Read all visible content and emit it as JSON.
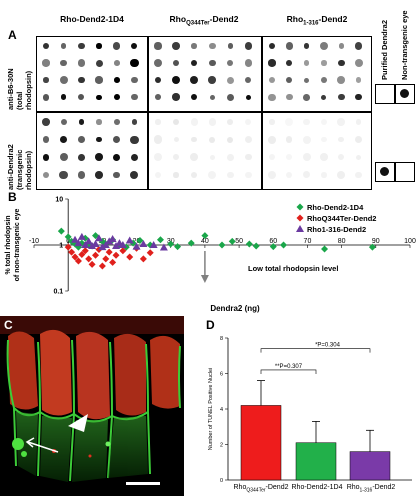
{
  "panel_a": {
    "letter": "A",
    "column_titles": [
      {
        "main": "Rho-Dend2-1D4",
        "sub": "",
        "suffix": ""
      },
      {
        "main": "Rho",
        "sub": "Q344Ter",
        "suffix": "-Dend2"
      },
      {
        "main": "Rho",
        "sub": "1-316",
        "suffix": "-Dend2"
      }
    ],
    "row_labels": [
      {
        "line1": "anti-B6-30N",
        "line2": "(total",
        "line3": "rhodopsin)"
      },
      {
        "line1": "anti-Dendra2",
        "line2": "(transgenic",
        "line3": "rhodopsin)"
      }
    ],
    "side_labels": [
      "Purified Dendra2",
      "Non-transgenic eye"
    ]
  },
  "panel_b": {
    "letter": "B",
    "annotation": "Low total rhodopsin level"
  },
  "panel_c": {
    "letter": "C"
  },
  "panel_d": {
    "letter": "D",
    "sig_labels": [
      "P=0.304",
      "P=0.307"
    ]
  },
  "chart_data": [
    {
      "type": "scatter",
      "xlabel": "Dendra2 (ng)",
      "ylabel": "% total rhodopsin of non-transgenic eye",
      "xlim": [
        -10,
        100
      ],
      "ylim": [
        0.1,
        10
      ],
      "y_scale": "log",
      "x_ticks": [
        "-10",
        "0",
        "10",
        "20",
        "30",
        "40",
        "50",
        "60",
        "70",
        "80",
        "90",
        "100"
      ],
      "y_ticks": [
        "10",
        "1",
        "0.1"
      ],
      "legend_position": "top-right",
      "series": [
        {
          "name": "Rho-Dend2-1D4",
          "color": "#1aa64a",
          "marker": "diamond",
          "points": [
            [
              -2,
              2.0
            ],
            [
              0,
              1.5
            ],
            [
              1,
              1.2
            ],
            [
              2,
              1.05
            ],
            [
              3,
              0.9
            ],
            [
              4,
              1.1
            ],
            [
              5,
              1.4
            ],
            [
              6,
              1.0
            ],
            [
              7,
              0.95
            ],
            [
              8,
              1.6
            ],
            [
              10,
              1.2
            ],
            [
              11,
              1.05
            ],
            [
              13,
              1.3
            ],
            [
              15,
              1.0
            ],
            [
              17,
              0.9
            ],
            [
              19,
              1.1
            ],
            [
              21,
              1.25
            ],
            [
              24,
              1.0
            ],
            [
              27,
              1.3
            ],
            [
              30,
              1.05
            ],
            [
              32,
              0.92
            ],
            [
              36,
              1.1
            ],
            [
              40,
              1.6
            ],
            [
              45,
              1.0
            ],
            [
              48,
              1.2
            ],
            [
              53,
              1.05
            ],
            [
              55,
              0.95
            ],
            [
              60,
              0.92
            ],
            [
              63,
              1.0
            ],
            [
              75,
              0.82
            ],
            [
              89,
              0.9
            ]
          ]
        },
        {
          "name": "RhoQ344Ter-Dend2",
          "color": "#e0201c",
          "marker": "diamond",
          "points": [
            [
              0,
              0.9
            ],
            [
              1,
              0.7
            ],
            [
              2,
              0.55
            ],
            [
              3,
              0.45
            ],
            [
              4,
              0.62
            ],
            [
              5,
              0.75
            ],
            [
              6,
              0.5
            ],
            [
              7,
              0.38
            ],
            [
              8,
              0.6
            ],
            [
              9,
              0.8
            ],
            [
              10,
              0.35
            ],
            [
              11,
              0.5
            ],
            [
              12,
              0.7
            ],
            [
              13,
              0.42
            ],
            [
              14,
              0.6
            ],
            [
              16,
              0.75
            ],
            [
              18,
              0.55
            ],
            [
              20,
              0.85
            ],
            [
              22,
              0.5
            ],
            [
              24,
              0.68
            ]
          ]
        },
        {
          "name": "Rho1-316-Dend2",
          "color": "#6a3aa0",
          "marker": "triangle",
          "points": [
            [
              2,
              1.3
            ],
            [
              3,
              1.1
            ],
            [
              4,
              1.5
            ],
            [
              5,
              1.0
            ],
            [
              6,
              1.2
            ],
            [
              7,
              0.95
            ],
            [
              8,
              1.05
            ],
            [
              9,
              1.4
            ],
            [
              10,
              0.9
            ],
            [
              11,
              1.0
            ],
            [
              12,
              1.2
            ],
            [
              13,
              1.35
            ],
            [
              14,
              0.95
            ],
            [
              15,
              1.1
            ],
            [
              16,
              1.0
            ],
            [
              18,
              1.25
            ],
            [
              20,
              0.92
            ],
            [
              22,
              1.05
            ],
            [
              25,
              1.0
            ],
            [
              28,
              0.88
            ]
          ]
        }
      ]
    },
    {
      "type": "bar",
      "ylabel": "Number of TUNEL Positive Nuclei",
      "ylim": [
        0,
        8
      ],
      "y_ticks": [
        "0",
        "2",
        "4",
        "6",
        "8"
      ],
      "categories": [
        {
          "main": "Rho",
          "sub": "Q344Ter",
          "suffix": "-Dend2"
        },
        {
          "main": "Rho-Dend2-1D4",
          "sub": "",
          "suffix": ""
        },
        {
          "main": "Rho",
          "sub": "1-316",
          "suffix": "-Dend2"
        }
      ],
      "values": [
        4.2,
        2.1,
        1.6
      ],
      "errors": [
        1.4,
        1.2,
        1.2
      ],
      "colors": [
        "#ee1c1c",
        "#22b04a",
        "#7a3aa8"
      ]
    }
  ],
  "colors": {
    "green": "#1aa64a",
    "red": "#e0201c",
    "purple": "#6a3aa0",
    "grey_arrow": "#808080"
  }
}
